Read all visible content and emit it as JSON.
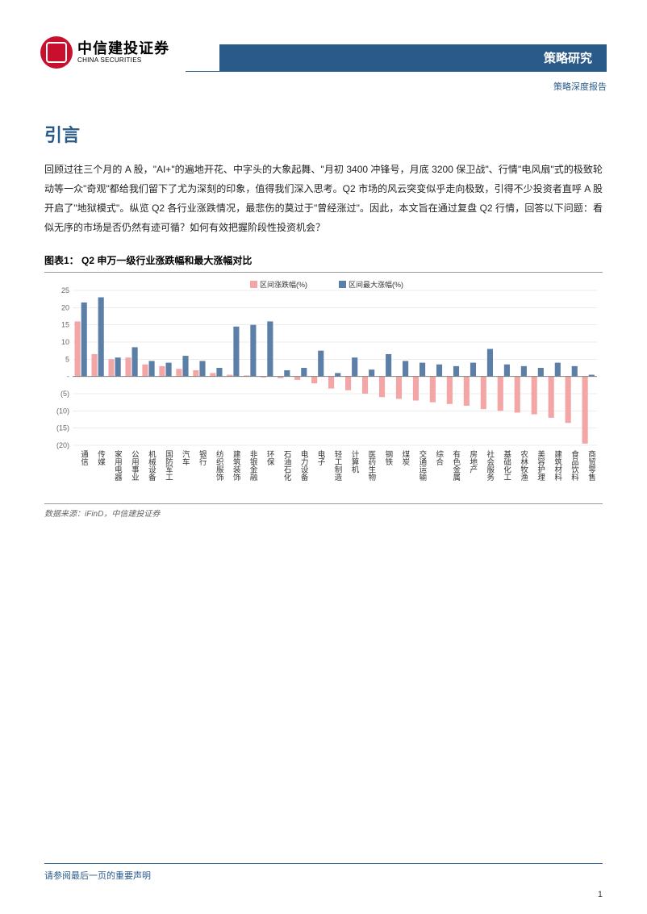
{
  "header": {
    "logo_cn": "中信建投证券",
    "logo_en": "CHINA SECURITIES",
    "title_bar": "策略研究",
    "subtitle": "策略深度报告"
  },
  "section": {
    "heading": "引言",
    "body": "回顾过往三个月的 A 股，\"AI+\"的遍地开花、中字头的大象起舞、\"月初 3400 冲锋号，月底 3200 保卫战\"、行情\"电风扇\"式的极致轮动等一众\"奇观\"都给我们留下了尤为深刻的印象，值得我们深入思考。Q2 市场的风云突变似乎走向极致，引得不少投资者直呼 A 股开启了\"地狱模式\"。纵览 Q2 各行业涨跌情况，最悲伤的莫过于\"曾经涨过\"。因此，本文旨在通过复盘 Q2 行情，回答以下问题：看似无序的市场是否仍然有迹可循？如何有效把握阶段性投资机会？"
  },
  "chart": {
    "title": "图表1：  Q2 申万一级行业涨跌幅和最大涨幅对比",
    "source": "数据来源：iFinD，中信建投证券",
    "type": "bar",
    "legend": {
      "series1_label": "区间涨跌幅(%)",
      "series2_label": "区间最大涨幅(%)",
      "series1_color": "#f4a6a6",
      "series2_color": "#5b7fa6"
    },
    "ylim_min": -20,
    "ylim_max": 25,
    "ytick_step": 5,
    "yticks": [
      "25",
      "20",
      "15",
      "10",
      "5",
      "-",
      "(5)",
      "(10)",
      "(15)",
      "(20)"
    ],
    "grid_color": "#d9d9d9",
    "axis_color": "#808080",
    "label_fontsize": 9,
    "categories": [
      "通信",
      "传媒",
      "家用电器",
      "公用事业",
      "机械设备",
      "国防军工",
      "汽车",
      "银行",
      "纺织服饰",
      "建筑装饰",
      "非银金融",
      "环保",
      "石油石化",
      "电力设备",
      "电子",
      "轻工制造",
      "计算机",
      "医药生物",
      "钢铁",
      "煤炭",
      "交通运输",
      "综合",
      "有色金属",
      "房地产",
      "社会服务",
      "基础化工",
      "农林牧渔",
      "美容护理",
      "建筑材料",
      "食品饮料",
      "商贸零售"
    ],
    "series1_values": [
      16,
      6.5,
      5,
      5.5,
      3.5,
      3,
      2.2,
      1.8,
      1,
      0.5,
      0.3,
      -0.3,
      -0.5,
      -1,
      -2,
      -3.5,
      -4,
      -5,
      -6,
      -6.5,
      -7,
      -7.5,
      -8,
      -8.5,
      -9.5,
      -10,
      -10.5,
      -11,
      -12,
      -13.5,
      -19.5
    ],
    "series2_values": [
      21.5,
      23,
      5.5,
      8.5,
      4.5,
      4,
      6,
      4.5,
      2.5,
      14.5,
      15,
      16,
      1.8,
      2.5,
      7.5,
      1,
      5.5,
      2,
      6.5,
      4.5,
      4,
      3.5,
      3,
      4,
      8,
      3.5,
      3,
      2.5,
      4,
      3,
      0.5
    ]
  },
  "footer": {
    "disclaimer": "请参阅最后一页的重要声明",
    "page_number": "1"
  }
}
